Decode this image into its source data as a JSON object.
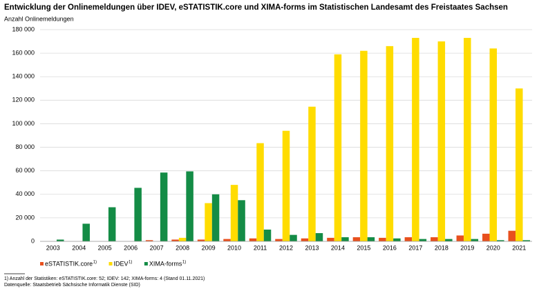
{
  "chart_data": {
    "type": "bar",
    "title": "Entwicklung der Onlinemeldungen über IDEV, eSTATISTIK.core und XIMA-forms im Statistischen Landesamt des Freistaates Sachsen",
    "y_label": "Anzahl Onlinemeldungen",
    "categories": [
      "2003",
      "2004",
      "2005",
      "2006",
      "2007",
      "2008",
      "2009",
      "2010",
      "2011",
      "2012",
      "2013",
      "2014",
      "2015",
      "2016",
      "2017",
      "2018",
      "2019",
      "2020",
      "2021"
    ],
    "series": [
      {
        "name": "eSTATISTIK.core",
        "note": "1)",
        "color": "#e8501e",
        "values": [
          0,
          0,
          0,
          0,
          1000,
          1500,
          1500,
          2000,
          2500,
          2000,
          2500,
          3000,
          3500,
          3000,
          3500,
          3500,
          5000,
          6500,
          9000
        ]
      },
      {
        "name": "IDEV",
        "note": "1)",
        "color": "#ffdc00",
        "values": [
          0,
          0,
          0,
          0,
          0,
          3000,
          32500,
          48000,
          83500,
          94000,
          114500,
          159000,
          162000,
          166000,
          173000,
          170000,
          173000,
          164000,
          130000
        ]
      },
      {
        "name": "XIMA-forms",
        "note": "1)",
        "color": "#148c46",
        "values": [
          1500,
          15000,
          29000,
          45500,
          58500,
          59500,
          40000,
          35000,
          10000,
          5500,
          7000,
          3500,
          3500,
          2500,
          2000,
          2000,
          2000,
          1000,
          1000
        ]
      }
    ],
    "ylim": [
      0,
      180000
    ],
    "yticks": [
      0,
      {
        "value": 20000,
        "label": "20 000"
      },
      {
        "value": 40000,
        "label": "40 000"
      },
      {
        "value": 60000,
        "label": "60 000"
      },
      {
        "value": 80000,
        "label": "80 000"
      },
      {
        "value": 100000,
        "label": "100 000"
      },
      {
        "value": 120000,
        "label": "120 000"
      },
      {
        "value": 140000,
        "label": "140 000"
      },
      {
        "value": 160000,
        "label": "160 000"
      },
      {
        "value": 180000,
        "label": "180 000"
      }
    ],
    "grid": true,
    "footnotes": [
      "1) Anzahl der Statistiken: eSTATISTIK.core: 52; IDEV: 142; XIMA-forms: 4 (Stand 01.11.2021)",
      "Datenquelle: Staatsbetrieb Sächsische Informatik Dienste (SID)"
    ]
  }
}
